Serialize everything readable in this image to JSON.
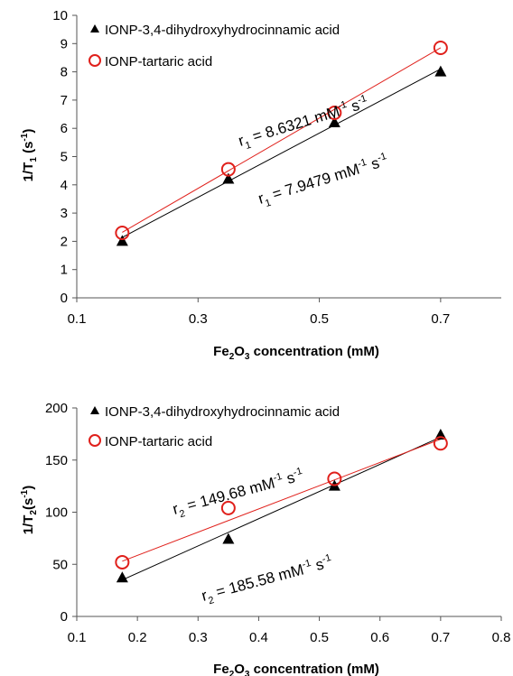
{
  "colors": {
    "series1": "#000000",
    "series2": "#e0201b",
    "axis": "#555555"
  },
  "chart_data": [
    {
      "type": "scatter",
      "ylabel": {
        "main": "1/T",
        "sub": "1",
        "unit_pre": " (s",
        "unit_sup": "-1",
        "unit_post": ")"
      },
      "xlabel": {
        "pre": "Fe",
        "sub1": "2",
        "mid": "O",
        "sub2": "3",
        "post": " concentration (mM)"
      },
      "xlim": [
        0.1,
        0.8
      ],
      "ylim": [
        0,
        10
      ],
      "x_ticks": [
        "0.1",
        "0.3",
        "0.5",
        "0.7"
      ],
      "x_tick_values": [
        0.1,
        0.3,
        0.5,
        0.7
      ],
      "y_ticks": [
        "0",
        "1",
        "2",
        "3",
        "4",
        "5",
        "6",
        "7",
        "8",
        "9",
        "10"
      ],
      "y_tick_values": [
        0,
        1,
        2,
        3,
        4,
        5,
        6,
        7,
        8,
        9,
        10
      ],
      "legend_position": "top-left",
      "series": [
        {
          "name": "IONP-3,4-dihydroxyhydrocinnamic acid",
          "marker": "triangle",
          "x": [
            0.175,
            0.35,
            0.525,
            0.7
          ],
          "y": [
            2.0,
            4.2,
            6.2,
            8.0
          ],
          "fit": {
            "x": [
              0.175,
              0.7
            ],
            "y": [
              2.14,
              8.1
            ]
          }
        },
        {
          "name": "IONP-tartaric acid",
          "marker": "circle",
          "x": [
            0.175,
            0.35,
            0.525,
            0.7
          ],
          "y": [
            2.3,
            4.55,
            6.55,
            8.85
          ],
          "fit": {
            "x": [
              0.175,
              0.7
            ],
            "y": [
              2.32,
              8.85
            ]
          }
        }
      ],
      "annotations": [
        {
          "pre": "r",
          "sub": "1",
          "mid": " = 8.6321 mM",
          "sup1": "-1",
          "post": " s",
          "sup2": "-1"
        },
        {
          "pre": "r",
          "sub": "1",
          "mid": " = 7.9479 mM",
          "sup1": "-1",
          "post": " s",
          "sup2": "-1"
        }
      ]
    },
    {
      "type": "scatter",
      "ylabel": {
        "main": "1/T",
        "sub": "2",
        "unit_pre": "(s",
        "unit_sup": "-1",
        "unit_post": ")"
      },
      "xlabel": {
        "pre": "Fe",
        "sub1": "2",
        "mid": "O",
        "sub2": "3",
        "post": " concentration (mM)"
      },
      "xlim": [
        0.1,
        0.8
      ],
      "ylim": [
        0,
        200
      ],
      "x_ticks": [
        "0.1",
        "0.2",
        "0.3",
        "0.4",
        "0.5",
        "0.6",
        "0.7",
        "0.8"
      ],
      "x_tick_values": [
        0.1,
        0.2,
        0.3,
        0.4,
        0.5,
        0.6,
        0.7,
        0.8
      ],
      "y_ticks": [
        "0",
        "50",
        "100",
        "150",
        "200"
      ],
      "y_tick_values": [
        0,
        50,
        100,
        150,
        200
      ],
      "legend_position": "top-left",
      "series": [
        {
          "name": "IONP-3,4-dihydroxyhydrocinnamic acid",
          "marker": "triangle",
          "x": [
            0.175,
            0.35,
            0.525,
            0.7
          ],
          "y": [
            37,
            74,
            125,
            174
          ],
          "fit": {
            "x": [
              0.175,
              0.7
            ],
            "y": [
              35,
              172
            ]
          }
        },
        {
          "name": "IONP-tartaric acid",
          "marker": "circle",
          "x": [
            0.175,
            0.35,
            0.525,
            0.7
          ],
          "y": [
            52,
            104,
            132,
            166
          ],
          "fit": {
            "x": [
              0.175,
              0.7
            ],
            "y": [
              53,
              170
            ]
          }
        }
      ],
      "annotations": [
        {
          "pre": "r",
          "sub": "2",
          "mid": " = 149.68 mM",
          "sup1": "-1",
          "post": " s",
          "sup2": "-1"
        },
        {
          "pre": "r",
          "sub": "2",
          "mid": " = 185.58 mM",
          "sup1": "-1",
          "post": " s",
          "sup2": "-1"
        }
      ]
    }
  ]
}
